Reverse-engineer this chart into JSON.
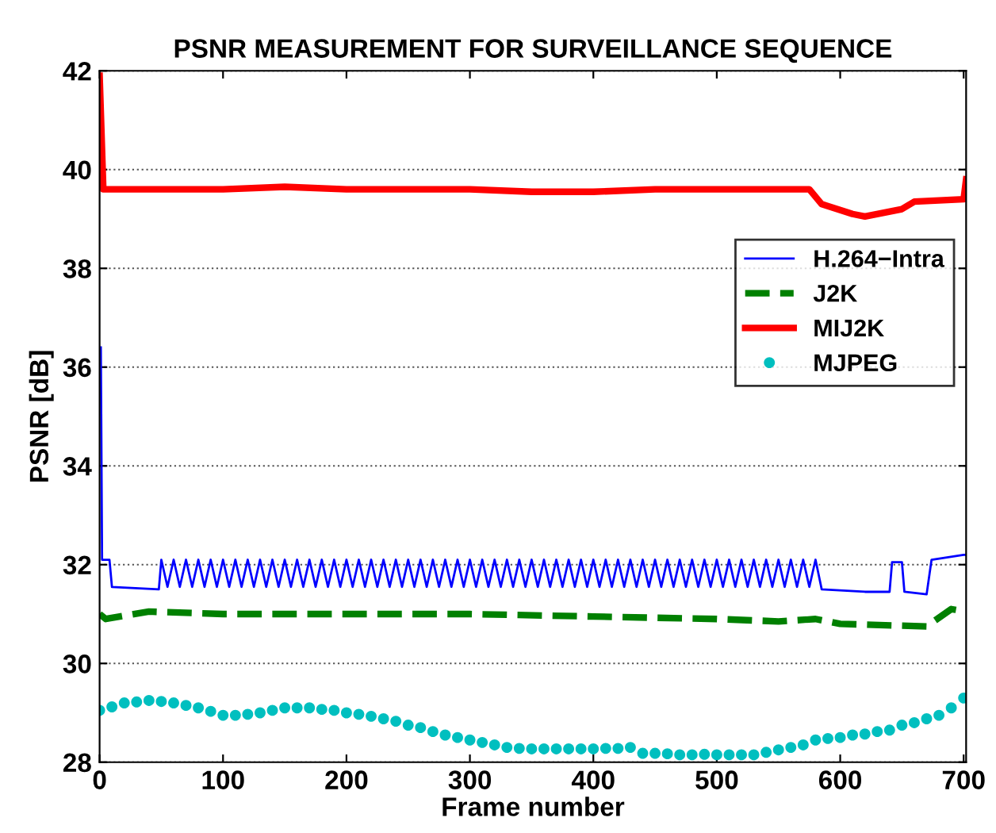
{
  "chart_data": {
    "type": "line",
    "title": "PSNR MEASUREMENT FOR SURVEILLANCE SEQUENCE",
    "xlabel": "Frame number",
    "ylabel": "PSNR [dB]",
    "xlim": [
      0,
      702
    ],
    "ylim": [
      28,
      42
    ],
    "xticks": [
      0,
      100,
      200,
      300,
      400,
      500,
      600,
      700
    ],
    "yticks": [
      28,
      30,
      32,
      34,
      36,
      38,
      40,
      42
    ],
    "grid": "y",
    "legend": "right",
    "series": [
      {
        "name": "H.264−Intra",
        "color": "#0000ff",
        "line_style": "solid",
        "x": [
          1,
          2,
          8,
          10,
          48,
          50,
          55,
          60,
          65,
          70,
          75,
          80,
          85,
          90,
          95,
          100,
          105,
          110,
          115,
          120,
          125,
          130,
          135,
          140,
          145,
          150,
          155,
          160,
          165,
          170,
          175,
          180,
          185,
          190,
          195,
          200,
          205,
          210,
          215,
          220,
          225,
          230,
          235,
          240,
          245,
          250,
          255,
          260,
          265,
          270,
          275,
          280,
          285,
          290,
          295,
          300,
          305,
          310,
          315,
          320,
          325,
          330,
          335,
          340,
          345,
          350,
          355,
          360,
          365,
          370,
          375,
          380,
          385,
          390,
          395,
          400,
          405,
          410,
          415,
          420,
          425,
          430,
          435,
          440,
          445,
          450,
          455,
          460,
          465,
          470,
          475,
          480,
          485,
          490,
          495,
          500,
          505,
          510,
          515,
          520,
          525,
          530,
          535,
          540,
          545,
          550,
          555,
          560,
          565,
          570,
          575,
          580,
          585,
          620,
          640,
          642,
          650,
          652,
          670,
          674,
          700,
          702
        ],
        "values": [
          36.4,
          32.1,
          32.1,
          31.55,
          31.5,
          32.1,
          31.55,
          32.1,
          31.55,
          32.1,
          31.55,
          32.1,
          31.55,
          32.1,
          31.55,
          32.1,
          31.55,
          32.1,
          31.55,
          32.1,
          31.55,
          32.1,
          31.55,
          32.1,
          31.55,
          32.1,
          31.55,
          32.1,
          31.55,
          32.1,
          31.55,
          32.1,
          31.55,
          32.1,
          31.55,
          32.1,
          31.55,
          32.1,
          31.55,
          32.1,
          31.55,
          32.1,
          31.55,
          32.1,
          31.55,
          32.1,
          31.55,
          32.1,
          31.55,
          32.1,
          31.55,
          32.1,
          31.55,
          32.1,
          31.55,
          32.1,
          31.55,
          32.1,
          31.55,
          32.1,
          31.55,
          32.1,
          31.55,
          32.1,
          31.55,
          32.1,
          31.55,
          32.1,
          31.55,
          32.1,
          31.55,
          32.1,
          31.55,
          32.1,
          31.55,
          32.1,
          31.55,
          32.1,
          31.55,
          32.1,
          31.55,
          32.1,
          31.55,
          32.1,
          31.55,
          32.1,
          31.55,
          32.1,
          31.55,
          32.1,
          31.55,
          32.1,
          31.55,
          32.1,
          31.55,
          32.1,
          31.55,
          32.1,
          31.55,
          32.1,
          31.55,
          32.1,
          31.55,
          32.1,
          31.55,
          32.1,
          31.55,
          32.1,
          31.55,
          32.1,
          31.55,
          32.1,
          31.5,
          31.45,
          31.45,
          32.05,
          32.05,
          31.45,
          31.4,
          32.1,
          32.2,
          32.2
        ]
      },
      {
        "name": "J2K",
        "color": "#008000",
        "line_style": "dashed",
        "x": [
          0,
          5,
          40,
          100,
          200,
          300,
          400,
          500,
          550,
          580,
          600,
          670,
          690,
          702
        ],
        "values": [
          31.0,
          30.9,
          31.05,
          31.0,
          31.0,
          31.0,
          30.95,
          30.9,
          30.85,
          30.9,
          30.8,
          30.75,
          31.1,
          31.05
        ]
      },
      {
        "name": "MIJ2K",
        "color": "#ff0000",
        "line_style": "solid",
        "x": [
          0,
          3,
          50,
          100,
          150,
          200,
          300,
          350,
          400,
          450,
          500,
          575,
          585,
          610,
          620,
          650,
          660,
          700,
          702
        ],
        "values": [
          41.9,
          39.6,
          39.6,
          39.6,
          39.65,
          39.6,
          39.6,
          39.55,
          39.55,
          39.6,
          39.6,
          39.6,
          39.3,
          39.1,
          39.05,
          39.2,
          39.35,
          39.4,
          39.8
        ]
      },
      {
        "name": "MJPEG",
        "type": "scatter",
        "color": "#00bfbf",
        "marker": "circle",
        "x": [
          0,
          10,
          20,
          30,
          40,
          50,
          60,
          70,
          80,
          90,
          100,
          110,
          120,
          130,
          140,
          150,
          160,
          170,
          180,
          190,
          200,
          210,
          220,
          230,
          240,
          250,
          260,
          270,
          280,
          290,
          300,
          310,
          320,
          330,
          340,
          350,
          360,
          370,
          380,
          390,
          400,
          410,
          420,
          430,
          440,
          450,
          460,
          470,
          480,
          490,
          500,
          510,
          520,
          530,
          540,
          550,
          560,
          570,
          580,
          590,
          600,
          610,
          620,
          630,
          640,
          650,
          660,
          670,
          680,
          690,
          700
        ],
        "values": [
          29.05,
          29.12,
          29.2,
          29.22,
          29.25,
          29.23,
          29.2,
          29.15,
          29.1,
          29.03,
          28.95,
          28.95,
          28.97,
          29.0,
          29.05,
          29.1,
          29.1,
          29.1,
          29.07,
          29.05,
          29.0,
          28.97,
          28.93,
          28.88,
          28.83,
          28.75,
          28.7,
          28.62,
          28.55,
          28.5,
          28.45,
          28.4,
          28.35,
          28.3,
          28.28,
          28.27,
          28.27,
          28.27,
          28.27,
          28.27,
          28.27,
          28.28,
          28.28,
          28.3,
          28.18,
          28.18,
          28.17,
          28.15,
          28.15,
          28.16,
          28.15,
          28.15,
          28.15,
          28.15,
          28.2,
          28.25,
          28.3,
          28.35,
          28.45,
          28.48,
          28.5,
          28.55,
          28.57,
          28.62,
          28.65,
          28.75,
          28.8,
          28.88,
          28.95,
          29.1,
          29.3
        ]
      }
    ]
  }
}
